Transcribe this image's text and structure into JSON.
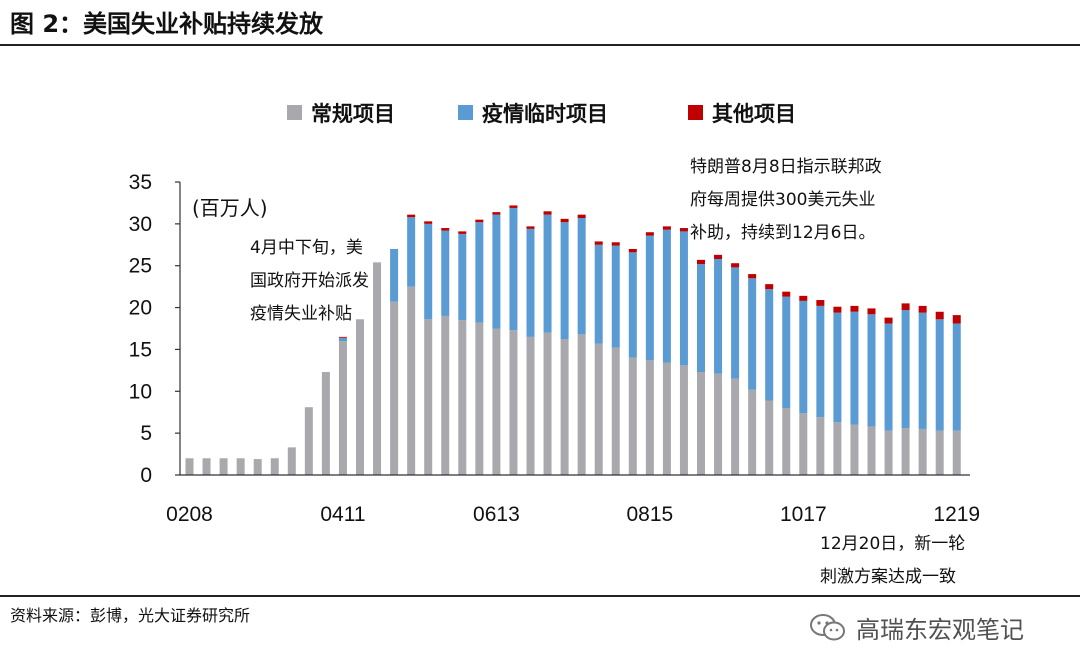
{
  "figure_title": "图 2：美国失业补贴持续发放",
  "source_label": "资料来源：彭博，光大证券研究所",
  "watermark_text": "高瑞东宏观笔记",
  "colors": {
    "regular": "#a9a8ad",
    "pandemic": "#5b9bd3",
    "other": "#c00000",
    "axis": "#333333",
    "text": "#111111"
  },
  "chart_data": {
    "type": "bar",
    "stacked": true,
    "title": "",
    "unit_label": "(百万人)",
    "xlabel": "",
    "ylabel": "",
    "ylim": [
      0,
      35
    ],
    "yticks": [
      0,
      5,
      10,
      15,
      20,
      25,
      30,
      35
    ],
    "grid": false,
    "legend_position": "top",
    "x_tick_labels": [
      "0208",
      "0411",
      "0613",
      "0815",
      "1017",
      "1219"
    ],
    "x_tick_index": [
      0,
      9,
      18,
      27,
      36,
      45
    ],
    "series": [
      {
        "name": "常规项目",
        "color": "#a9a8ad",
        "values": [
          2.0,
          2.0,
          2.0,
          2.0,
          1.9,
          2.0,
          3.3,
          8.1,
          12.3,
          16.0,
          18.6,
          25.4,
          20.7,
          22.5,
          18.6,
          19.0,
          18.5,
          18.2,
          17.5,
          17.3,
          16.5,
          17.0,
          16.2,
          16.8,
          15.7,
          15.2,
          14.0,
          13.7,
          13.4,
          13.1,
          12.3,
          12.1,
          11.5,
          10.2,
          8.9,
          8.0,
          7.4,
          6.9,
          6.3,
          6.0,
          5.8,
          5.3,
          5.6,
          5.5,
          5.3,
          5.3
        ]
      },
      {
        "name": "疫情临时项目",
        "color": "#5b9bd3",
        "values": [
          0,
          0,
          0,
          0,
          0,
          0,
          0,
          0,
          0,
          0.4,
          0,
          0,
          6.3,
          8.3,
          11.4,
          10.2,
          10.3,
          12.0,
          13.6,
          14.6,
          12.9,
          14.1,
          14.0,
          13.9,
          11.8,
          12.2,
          12.6,
          14.9,
          15.9,
          16.0,
          12.9,
          13.7,
          13.3,
          13.3,
          13.3,
          13.3,
          13.4,
          13.3,
          13.1,
          13.5,
          13.4,
          12.8,
          14.1,
          13.9,
          13.3,
          12.8
        ]
      },
      {
        "name": "其他项目",
        "color": "#c00000",
        "values": [
          0,
          0,
          0,
          0,
          0,
          0,
          0,
          0,
          0,
          0.1,
          0,
          0,
          0,
          0.3,
          0.3,
          0.3,
          0.3,
          0.3,
          0.3,
          0.3,
          0.3,
          0.4,
          0.4,
          0.4,
          0.4,
          0.4,
          0.4,
          0.4,
          0.4,
          0.4,
          0.5,
          0.5,
          0.5,
          0.5,
          0.6,
          0.6,
          0.6,
          0.7,
          0.7,
          0.7,
          0.7,
          0.7,
          0.8,
          0.8,
          0.9,
          1.0
        ]
      }
    ],
    "annotations": [
      {
        "id": "ann-april",
        "lines": [
          "4月中下旬，美",
          "国政府开始派发",
          "疫情失业补贴"
        ]
      },
      {
        "id": "ann-august",
        "lines": [
          "特朗普8月8日指示联邦政",
          "府每周提供300美元失业",
          "补助，持续到12月6日。"
        ]
      },
      {
        "id": "ann-december",
        "lines": [
          "12月20日，新一轮",
          "刺激方案达成一致"
        ]
      }
    ]
  }
}
